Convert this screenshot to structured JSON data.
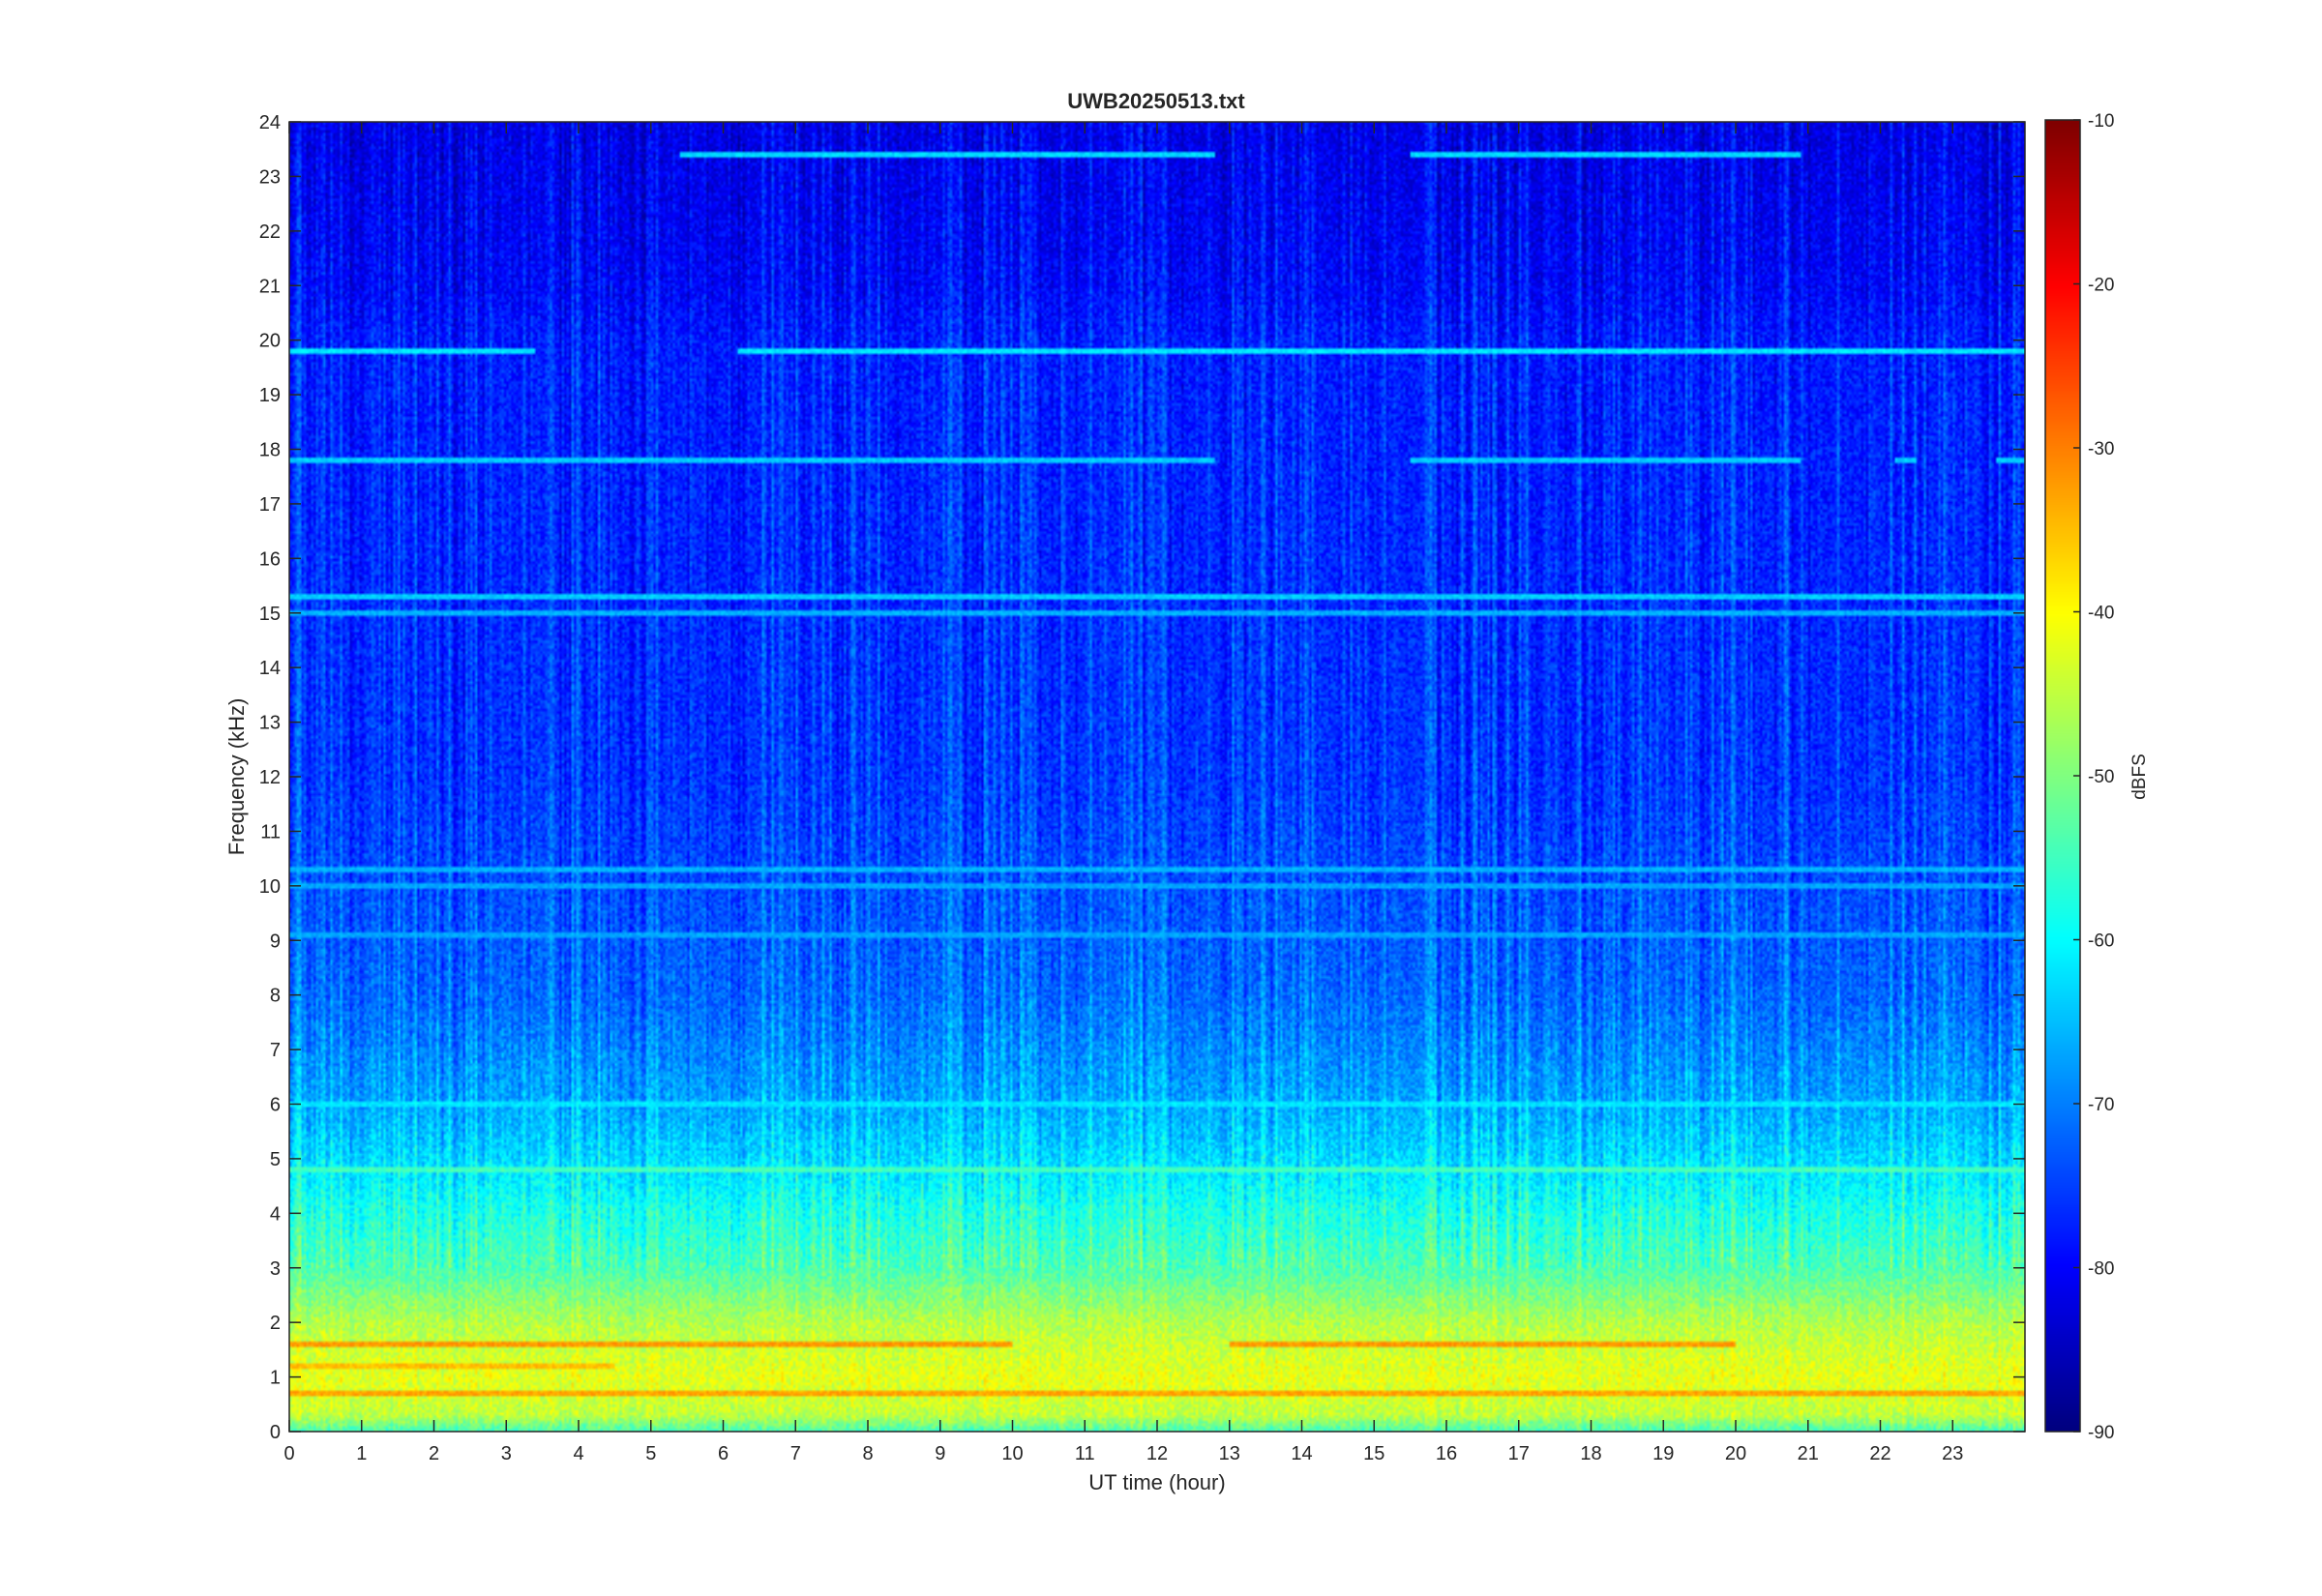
{
  "chart_data": {
    "type": "heatmap",
    "title": "UWB20250513.txt",
    "xlabel": "UT time (hour)",
    "ylabel": "Frequency (kHz)",
    "xlim": [
      0,
      24
    ],
    "ylim": [
      0,
      24
    ],
    "x_ticks": [
      "0",
      "1",
      "2",
      "3",
      "4",
      "5",
      "6",
      "7",
      "8",
      "9",
      "10",
      "11",
      "12",
      "13",
      "14",
      "15",
      "16",
      "17",
      "18",
      "19",
      "20",
      "21",
      "22",
      "23"
    ],
    "y_ticks": [
      "0",
      "1",
      "2",
      "3",
      "4",
      "5",
      "6",
      "7",
      "8",
      "9",
      "10",
      "11",
      "12",
      "13",
      "14",
      "15",
      "16",
      "17",
      "18",
      "19",
      "20",
      "21",
      "22",
      "23",
      "24"
    ],
    "colorbar": {
      "label": "dBFS",
      "range": [
        -90,
        -10
      ],
      "ticks": [
        "-10",
        "-20",
        "-30",
        "-40",
        "-50",
        "-60",
        "-70",
        "-80",
        "-90"
      ],
      "colormap": "jet"
    },
    "background_level_profile": [
      {
        "frequency_khz": 0.0,
        "dbfs": -55
      },
      {
        "frequency_khz": 0.3,
        "dbfs": -45
      },
      {
        "frequency_khz": 1.0,
        "dbfs": -42
      },
      {
        "frequency_khz": 2.0,
        "dbfs": -46
      },
      {
        "frequency_khz": 3.0,
        "dbfs": -54
      },
      {
        "frequency_khz": 4.0,
        "dbfs": -58
      },
      {
        "frequency_khz": 5.0,
        "dbfs": -63
      },
      {
        "frequency_khz": 6.0,
        "dbfs": -67
      },
      {
        "frequency_khz": 8.0,
        "dbfs": -72
      },
      {
        "frequency_khz": 12.0,
        "dbfs": -76
      },
      {
        "frequency_khz": 20.0,
        "dbfs": -78
      },
      {
        "frequency_khz": 21.0,
        "dbfs": -80
      },
      {
        "frequency_khz": 24.0,
        "dbfs": -82
      }
    ],
    "horizontal_lines": [
      {
        "frequency_khz": 19.8,
        "dbfs": -62,
        "segments": [
          [
            0,
            3.4
          ],
          [
            6.2,
            24
          ]
        ]
      },
      {
        "frequency_khz": 17.8,
        "dbfs": -64,
        "segments": [
          [
            0,
            12.8
          ],
          [
            15.5,
            20.9
          ],
          [
            22.2,
            22.5
          ],
          [
            23.6,
            24
          ]
        ]
      },
      {
        "frequency_khz": 23.4,
        "dbfs": -63,
        "segments": [
          [
            5.4,
            12.8
          ],
          [
            15.5,
            20.9
          ]
        ]
      },
      {
        "frequency_khz": 15.3,
        "dbfs": -64,
        "segments": [
          [
            0,
            24
          ]
        ]
      },
      {
        "frequency_khz": 15.0,
        "dbfs": -66,
        "segments": [
          [
            0,
            24
          ]
        ]
      },
      {
        "frequency_khz": 10.3,
        "dbfs": -66,
        "segments": [
          [
            0,
            24
          ]
        ]
      },
      {
        "frequency_khz": 10.0,
        "dbfs": -67,
        "segments": [
          [
            0,
            24
          ]
        ]
      },
      {
        "frequency_khz": 9.1,
        "dbfs": -67,
        "segments": [
          [
            0,
            24
          ]
        ]
      },
      {
        "frequency_khz": 6.0,
        "dbfs": -62,
        "segments": [
          [
            0,
            24
          ]
        ]
      },
      {
        "frequency_khz": 4.8,
        "dbfs": -55,
        "segments": [
          [
            0,
            24
          ]
        ]
      },
      {
        "frequency_khz": 1.6,
        "dbfs": -32,
        "segments": [
          [
            0,
            10
          ],
          [
            13,
            20
          ]
        ]
      },
      {
        "frequency_khz": 1.2,
        "dbfs": -35,
        "segments": [
          [
            0,
            4.5
          ]
        ]
      },
      {
        "frequency_khz": 0.7,
        "dbfs": -33,
        "segments": [
          [
            0,
            24
          ]
        ]
      }
    ]
  }
}
